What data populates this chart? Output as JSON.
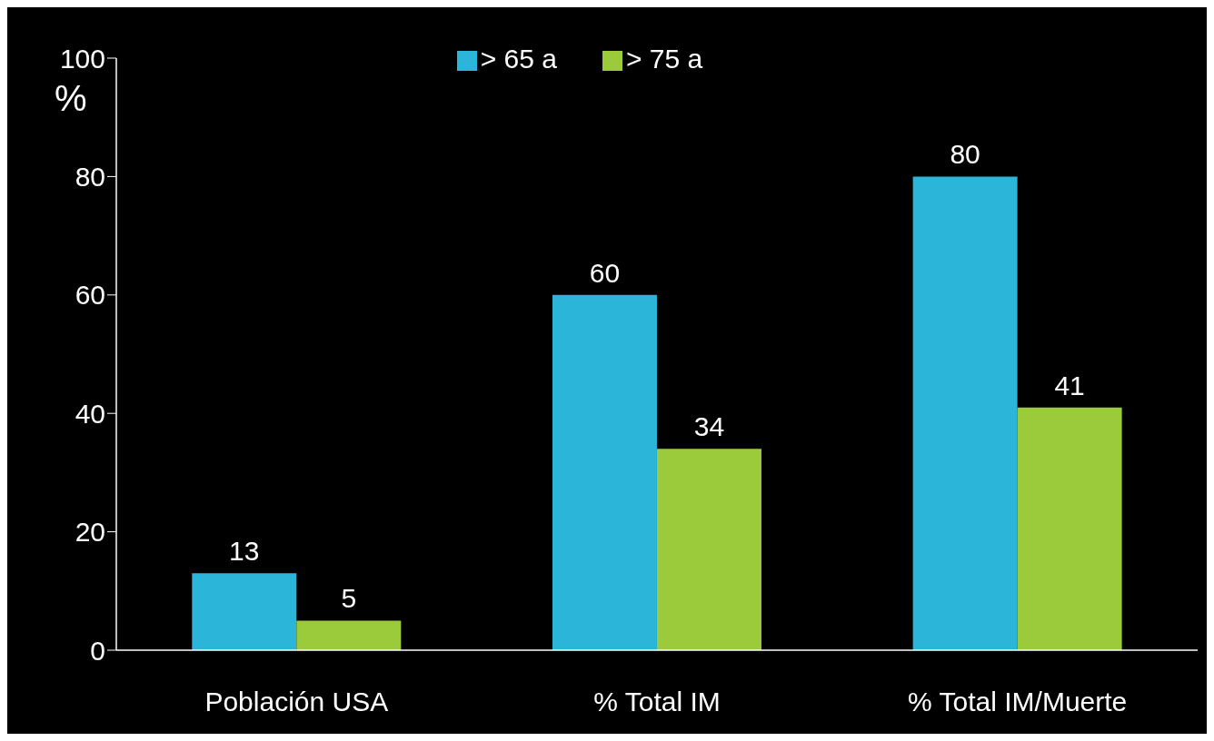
{
  "chart_data": {
    "type": "bar",
    "ylabel": "%",
    "categories": [
      "Población USA",
      "% Total IM",
      "% Total IM/Muerte"
    ],
    "series": [
      {
        "name": "> 65 a",
        "color": "#2bb5d9",
        "values": [
          13,
          60,
          80
        ]
      },
      {
        "name": "> 75 a",
        "color": "#9bcb3b",
        "values": [
          5,
          34,
          41
        ]
      }
    ],
    "ylim": [
      0,
      100
    ],
    "yticks": [
      0,
      20,
      40,
      60,
      80,
      100
    ],
    "data_labels": true,
    "legend": "top",
    "grid": false
  }
}
